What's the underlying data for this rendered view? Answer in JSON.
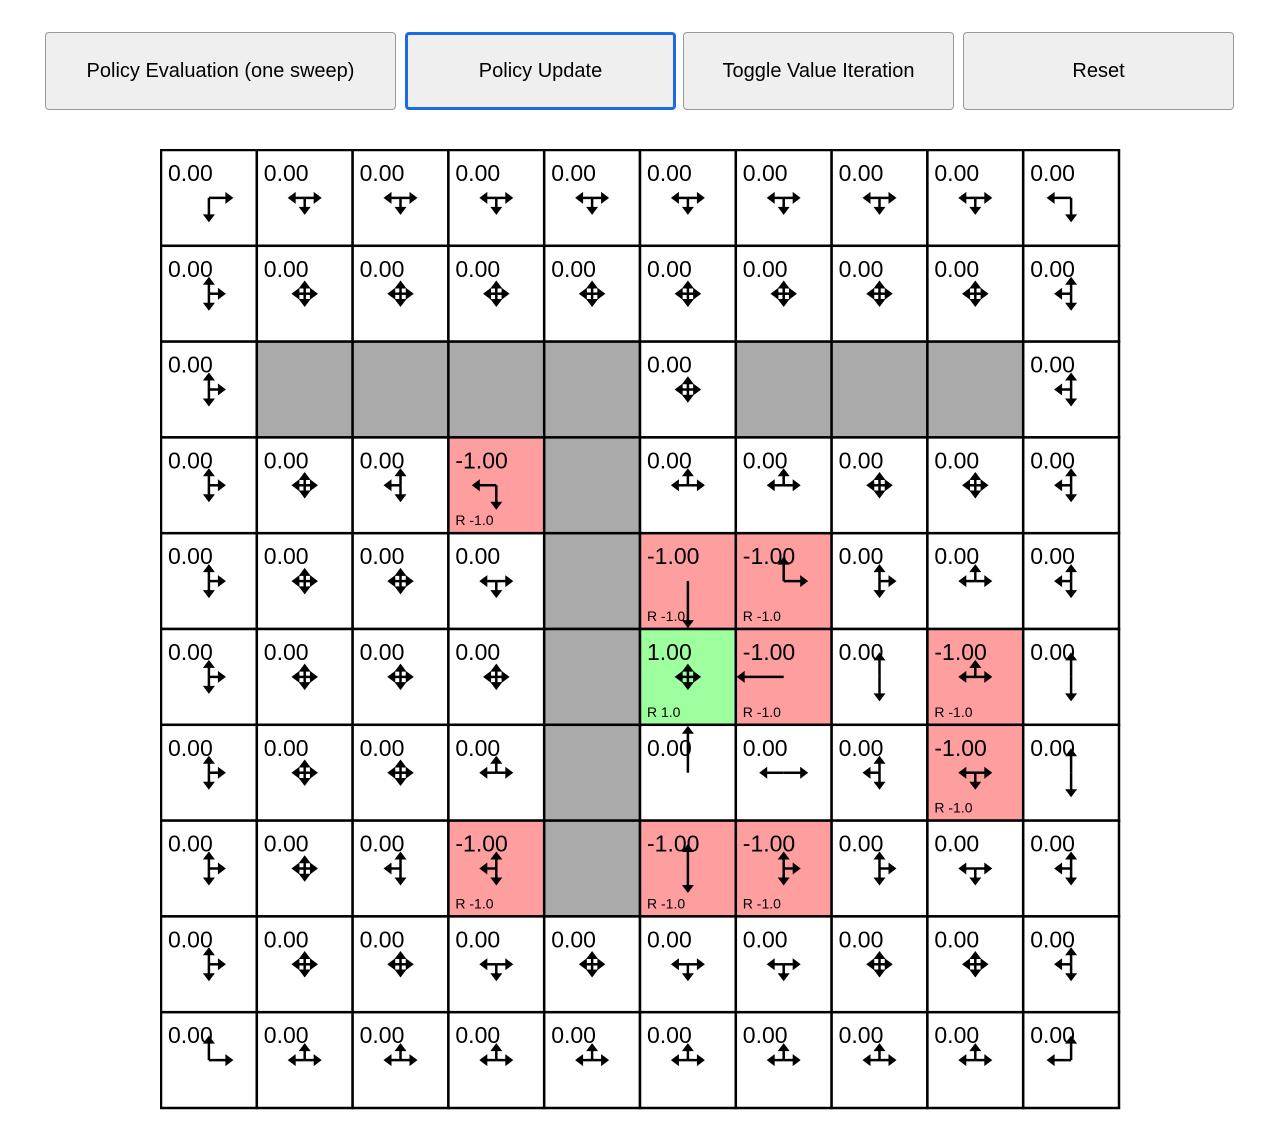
{
  "toolbar": {
    "buttons": [
      {
        "label": "Policy Evaluation (one sweep)"
      },
      {
        "label": "Policy Update",
        "focused": true
      },
      {
        "label": "Toggle Value Iteration"
      },
      {
        "label": "Reset"
      }
    ]
  },
  "colors": {
    "wall": "#aaaaaa",
    "negative": "#ff9e9e",
    "positive": "#9eff9e",
    "empty": "#ffffff",
    "focus": "#1a6ce0"
  },
  "grid": {
    "rows": 10,
    "cols": 10,
    "values": [
      [
        "0.00",
        "0.00",
        "0.00",
        "0.00",
        "0.00",
        "0.00",
        "0.00",
        "0.00",
        "0.00",
        "0.00"
      ],
      [
        "0.00",
        "0.00",
        "0.00",
        "0.00",
        "0.00",
        "0.00",
        "0.00",
        "0.00",
        "0.00",
        "0.00"
      ],
      [
        "0.00",
        "",
        "",
        "",
        "",
        "0.00",
        "",
        "",
        "",
        "0.00"
      ],
      [
        "0.00",
        "0.00",
        "0.00",
        "-1.00",
        "",
        "0.00",
        "0.00",
        "0.00",
        "0.00",
        "0.00"
      ],
      [
        "0.00",
        "0.00",
        "0.00",
        "0.00",
        "",
        "-1.00",
        "-1.00",
        "0.00",
        "0.00",
        "0.00"
      ],
      [
        "0.00",
        "0.00",
        "0.00",
        "0.00",
        "",
        "1.00",
        "-1.00",
        "0.00",
        "-1.00",
        "0.00"
      ],
      [
        "0.00",
        "0.00",
        "0.00",
        "0.00",
        "",
        "0.00",
        "0.00",
        "0.00",
        "-1.00",
        "0.00"
      ],
      [
        "0.00",
        "0.00",
        "0.00",
        "-1.00",
        "",
        "-1.00",
        "-1.00",
        "0.00",
        "0.00",
        "0.00"
      ],
      [
        "0.00",
        "0.00",
        "0.00",
        "0.00",
        "0.00",
        "0.00",
        "0.00",
        "0.00",
        "0.00",
        "0.00"
      ],
      [
        "0.00",
        "0.00",
        "0.00",
        "0.00",
        "0.00",
        "0.00",
        "0.00",
        "0.00",
        "0.00",
        "0.00"
      ]
    ],
    "walls": [
      [
        2,
        1
      ],
      [
        2,
        2
      ],
      [
        2,
        3
      ],
      [
        2,
        4
      ],
      [
        2,
        6
      ],
      [
        2,
        7
      ],
      [
        2,
        8
      ],
      [
        3,
        4
      ],
      [
        4,
        4
      ],
      [
        5,
        4
      ],
      [
        6,
        4
      ],
      [
        7,
        4
      ]
    ],
    "rewards": [
      {
        "row": 3,
        "col": 3,
        "label": "R -1.0",
        "value": -1.0
      },
      {
        "row": 4,
        "col": 5,
        "label": "R -1.0",
        "value": -1.0
      },
      {
        "row": 4,
        "col": 6,
        "label": "R -1.0",
        "value": -1.0
      },
      {
        "row": 5,
        "col": 5,
        "label": "R 1.0",
        "value": 1.0
      },
      {
        "row": 5,
        "col": 6,
        "label": "R -1.0",
        "value": -1.0
      },
      {
        "row": 5,
        "col": 8,
        "label": "R -1.0",
        "value": -1.0
      },
      {
        "row": 6,
        "col": 8,
        "label": "R -1.0",
        "value": -1.0
      },
      {
        "row": 7,
        "col": 3,
        "label": "R -1.0",
        "value": -1.0
      },
      {
        "row": 7,
        "col": 5,
        "label": "R -1.0",
        "value": -1.0
      },
      {
        "row": 7,
        "col": 6,
        "label": "R -1.0",
        "value": -1.0
      }
    ],
    "policy": [
      [
        "RD",
        "LRD",
        "LRD",
        "LRD",
        "LRD",
        "LRD",
        "LRD",
        "LRD",
        "LRD",
        "LD"
      ],
      [
        "URD",
        "LURD",
        "LURD",
        "LURD",
        "LURD",
        "LURD",
        "LURD",
        "LURD",
        "LURD",
        "LUD"
      ],
      [
        "URD",
        "",
        "",
        "",
        "",
        "LURD",
        "",
        "",
        "",
        "LUD"
      ],
      [
        "URD",
        "LURD",
        "LUD",
        "LD",
        "",
        "LUR",
        "LUR",
        "LURD",
        "LURD",
        "LUD"
      ],
      [
        "URD",
        "LURD",
        "LURD",
        "LRD",
        "",
        "D",
        "UR",
        "URD",
        "LUR",
        "LUD"
      ],
      [
        "URD",
        "LURD",
        "LURD",
        "LURD",
        "",
        "LURD",
        "L",
        "UD",
        "LUR",
        "UD"
      ],
      [
        "URD",
        "LURD",
        "LURD",
        "LUR",
        "",
        "U",
        "LR",
        "LUD",
        "LRD",
        "UD"
      ],
      [
        "URD",
        "LURD",
        "LUD",
        "LUD",
        "",
        "UD",
        "URD",
        "URD",
        "LRD",
        "LUD"
      ],
      [
        "URD",
        "LURD",
        "LURD",
        "LRD",
        "LURD",
        "LRD",
        "LRD",
        "LURD",
        "LURD",
        "LUD"
      ],
      [
        "UR",
        "LUR",
        "LUR",
        "LUR",
        "LUR",
        "LUR",
        "LUR",
        "LUR",
        "LUR",
        "LU"
      ]
    ]
  }
}
